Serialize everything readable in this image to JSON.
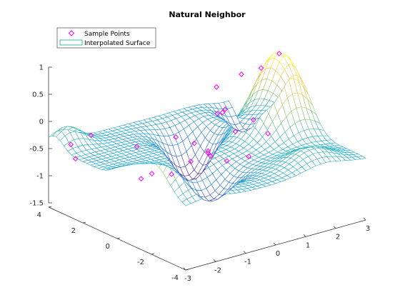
{
  "chart_data": {
    "type": "surface",
    "title": "Natural Neighbor",
    "xlabel": "",
    "ylabel": "",
    "zlabel": "",
    "xlim": [
      -3,
      3
    ],
    "ylim": [
      -4,
      4
    ],
    "zlim": [
      -1.5,
      1
    ],
    "x_ticks": [
      "-3",
      "-2",
      "-1",
      "0",
      "1",
      "2",
      "3"
    ],
    "y_ticks": [
      "-4",
      "-2",
      "0",
      "2",
      "4"
    ],
    "z_ticks": [
      "-1.5",
      "-1",
      "-0.5",
      "0",
      "0.5",
      "1"
    ],
    "grid": false,
    "legend_position": "top-left",
    "series": [
      {
        "name": "Sample Points",
        "marker": "diamond",
        "color": "#ff00ff"
      },
      {
        "name": "Interpolated Surface",
        "style": "mesh",
        "colormap": "parula"
      }
    ],
    "sample_points": [
      [
        -2.3,
        -2.2,
        0.5
      ],
      [
        2.4,
        0.0,
        1.0
      ],
      [
        2.6,
        1.4,
        0.5
      ],
      [
        2.4,
        2.2,
        0.3
      ],
      [
        -2.8,
        -0.8,
        0.2
      ],
      [
        -2.5,
        2.4,
        -0.1
      ],
      [
        -1.2,
        -2.3,
        0.0
      ],
      [
        -2.6,
        3.4,
        -0.4
      ],
      [
        -2.9,
        2.6,
        -0.5
      ],
      [
        -2.2,
        0.0,
        -0.6
      ],
      [
        -1.5,
        0.6,
        -0.7
      ],
      [
        0.2,
        0.3,
        -0.5
      ],
      [
        0.3,
        -1.9,
        -0.3
      ],
      [
        1.0,
        -1.8,
        0.0
      ],
      [
        1.4,
        0.8,
        -0.4
      ],
      [
        0.6,
        1.0,
        -0.7
      ],
      [
        2.0,
        2.6,
        -0.4
      ],
      [
        2.8,
        2.2,
        -0.6
      ],
      [
        0.6,
        2.0,
        -1.0
      ],
      [
        1.6,
        2.2,
        -0.3
      ],
      [
        -0.6,
        -2.2,
        -0.2
      ],
      [
        -2.1,
        -1.6,
        -0.3
      ],
      [
        1.0,
        2.5,
        -0.8
      ],
      [
        1.8,
        2.6,
        0.1
      ],
      [
        2.2,
        2.8,
        -0.4
      ]
    ]
  }
}
